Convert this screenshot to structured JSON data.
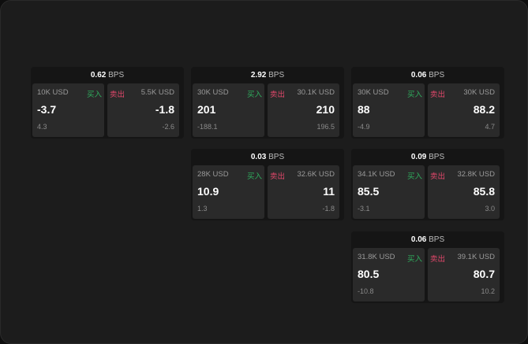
{
  "bps_unit": "BPS",
  "buy_label": "买入",
  "sell_label": "卖出",
  "colors": {
    "buy": "#2fae5e",
    "sell": "#e0476a"
  },
  "cards": [
    {
      "bps": "0.62",
      "buy": {
        "qty": "10K USD",
        "price": "-3.7",
        "change": "4.3"
      },
      "sell": {
        "qty": "5.5K USD",
        "price": "-1.8",
        "change": "-2.6"
      }
    },
    {
      "bps": "2.92",
      "buy": {
        "qty": "30K USD",
        "price": "201",
        "change": "-188.1"
      },
      "sell": {
        "qty": "30.1K USD",
        "price": "210",
        "change": "196.5"
      }
    },
    {
      "bps": "0.06",
      "buy": {
        "qty": "30K USD",
        "price": "88",
        "change": "-4.9"
      },
      "sell": {
        "qty": "30K USD",
        "price": "88.2",
        "change": "4.7"
      }
    },
    {
      "bps": "0.03",
      "buy": {
        "qty": "28K USD",
        "price": "10.9",
        "change": "1.3"
      },
      "sell": {
        "qty": "32.6K USD",
        "price": "11",
        "change": "-1.8"
      }
    },
    {
      "bps": "0.09",
      "buy": {
        "qty": "34.1K USD",
        "price": "85.5",
        "change": "-3.1"
      },
      "sell": {
        "qty": "32.8K USD",
        "price": "85.8",
        "change": "3.0"
      }
    },
    {
      "bps": "0.06",
      "buy": {
        "qty": "31.8K USD",
        "price": "80.5",
        "change": "-10.8"
      },
      "sell": {
        "qty": "39.1K USD",
        "price": "80.7",
        "change": "10.2"
      }
    }
  ]
}
